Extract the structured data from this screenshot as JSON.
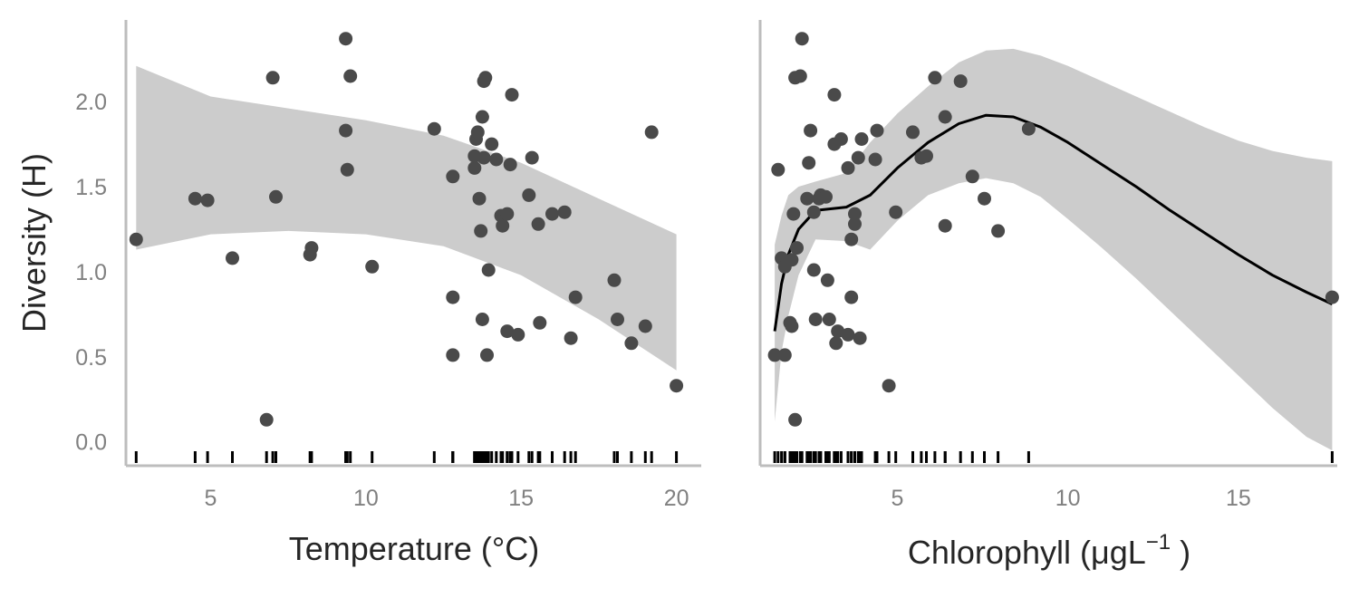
{
  "chart_data": [
    {
      "type": "scatter",
      "panel": "temperature",
      "xlabel": "Temperature (°C)",
      "ylabel": "Diversity (H)",
      "xlim": [
        2.3,
        20.8
      ],
      "ylim": [
        -0.14,
        2.48
      ],
      "x_ticks": [
        5,
        10,
        15,
        20
      ],
      "y_ticks": [
        0.0,
        0.5,
        1.0,
        1.5,
        2.0
      ],
      "y_tick_labels": [
        "0.0",
        "0.5",
        "1.0",
        "1.5",
        "2.0"
      ],
      "grid": false,
      "colors": {
        "points": "#4a4a4a",
        "band": "#cccccc",
        "rug": "#000000",
        "axis": "#bdbdbd"
      },
      "points": [
        [
          2.6,
          1.19
        ],
        [
          4.5,
          1.43
        ],
        [
          4.9,
          1.42
        ],
        [
          5.7,
          1.08
        ],
        [
          6.8,
          0.13
        ],
        [
          7.0,
          2.14
        ],
        [
          7.1,
          1.44
        ],
        [
          8.2,
          1.1
        ],
        [
          8.25,
          1.14
        ],
        [
          9.35,
          2.37
        ],
        [
          9.35,
          1.83
        ],
        [
          9.4,
          1.6
        ],
        [
          9.5,
          2.15
        ],
        [
          10.2,
          1.03
        ],
        [
          12.2,
          1.84
        ],
        [
          12.8,
          1.56
        ],
        [
          12.8,
          0.85
        ],
        [
          12.8,
          0.51
        ],
        [
          13.5,
          1.61
        ],
        [
          13.5,
          1.68
        ],
        [
          13.55,
          1.78
        ],
        [
          13.6,
          1.82
        ],
        [
          13.65,
          1.43
        ],
        [
          13.75,
          1.91
        ],
        [
          13.7,
          1.24
        ],
        [
          13.75,
          0.72
        ],
        [
          13.8,
          1.67
        ],
        [
          13.8,
          2.12
        ],
        [
          13.85,
          2.14
        ],
        [
          13.9,
          0.51
        ],
        [
          13.95,
          1.01
        ],
        [
          14.05,
          1.75
        ],
        [
          14.2,
          1.66
        ],
        [
          14.35,
          1.33
        ],
        [
          14.4,
          1.27
        ],
        [
          14.55,
          1.34
        ],
        [
          14.55,
          0.65
        ],
        [
          14.65,
          1.63
        ],
        [
          14.7,
          2.04
        ],
        [
          14.9,
          0.63
        ],
        [
          15.25,
          1.45
        ],
        [
          15.35,
          1.67
        ],
        [
          15.55,
          1.28
        ],
        [
          15.6,
          0.7
        ],
        [
          16.0,
          1.34
        ],
        [
          16.4,
          1.35
        ],
        [
          16.6,
          0.61
        ],
        [
          16.75,
          0.85
        ],
        [
          18.0,
          0.95
        ],
        [
          18.1,
          0.72
        ],
        [
          18.55,
          0.58
        ],
        [
          19.0,
          0.68
        ],
        [
          19.2,
          1.82
        ],
        [
          20.0,
          0.33
        ]
      ],
      "band": {
        "x": [
          2.6,
          5.0,
          7.5,
          10.0,
          12.5,
          15.0,
          17.5,
          20.0
        ],
        "upper": [
          2.21,
          2.03,
          1.96,
          1.89,
          1.8,
          1.64,
          1.43,
          1.22
        ],
        "lower": [
          1.13,
          1.22,
          1.24,
          1.22,
          1.15,
          0.98,
          0.72,
          0.42
        ]
      }
    },
    {
      "type": "line",
      "panel": "chlorophyll",
      "xlabel": "Chlorophyll (μgL",
      "xlabel_superscript": "−1",
      "xlabel_suffix": " )",
      "ylabel": "",
      "xlim": [
        1.0,
        17.9
      ],
      "ylim": [
        -0.14,
        2.48
      ],
      "x_ticks": [
        5,
        10,
        15
      ],
      "grid": false,
      "colors": {
        "points": "#4a4a4a",
        "band": "#cccccc",
        "line": "#000000",
        "rug": "#000000",
        "axis": "#bdbdbd"
      },
      "points": [
        [
          1.4,
          0.51
        ],
        [
          1.5,
          1.6
        ],
        [
          1.6,
          1.08
        ],
        [
          1.7,
          0.51
        ],
        [
          1.7,
          1.03
        ],
        [
          1.85,
          0.7
        ],
        [
          1.9,
          1.07
        ],
        [
          1.9,
          0.68
        ],
        [
          1.95,
          1.34
        ],
        [
          2.0,
          0.13
        ],
        [
          2.0,
          2.14
        ],
        [
          2.05,
          1.14
        ],
        [
          2.15,
          2.15
        ],
        [
          2.2,
          2.37
        ],
        [
          2.35,
          1.43
        ],
        [
          2.4,
          1.64
        ],
        [
          2.45,
          1.83
        ],
        [
          2.55,
          1.35
        ],
        [
          2.55,
          1.01
        ],
        [
          2.6,
          0.72
        ],
        [
          2.7,
          1.43
        ],
        [
          2.75,
          1.45
        ],
        [
          2.9,
          1.44
        ],
        [
          2.95,
          0.95
        ],
        [
          3.0,
          0.72
        ],
        [
          3.15,
          1.75
        ],
        [
          3.15,
          2.04
        ],
        [
          3.2,
          0.58
        ],
        [
          3.25,
          0.65
        ],
        [
          3.35,
          1.78
        ],
        [
          3.55,
          1.61
        ],
        [
          3.55,
          0.63
        ],
        [
          3.65,
          1.19
        ],
        [
          3.65,
          0.85
        ],
        [
          3.75,
          1.34
        ],
        [
          3.75,
          1.28
        ],
        [
          3.85,
          1.67
        ],
        [
          3.9,
          0.61
        ],
        [
          3.95,
          1.78
        ],
        [
          4.35,
          1.66
        ],
        [
          4.4,
          1.83
        ],
        [
          4.75,
          0.33
        ],
        [
          4.95,
          1.35
        ],
        [
          5.45,
          1.82
        ],
        [
          5.7,
          1.67
        ],
        [
          5.85,
          1.68
        ],
        [
          6.1,
          2.14
        ],
        [
          6.4,
          1.91
        ],
        [
          6.4,
          1.27
        ],
        [
          6.85,
          2.12
        ],
        [
          7.2,
          1.56
        ],
        [
          7.55,
          1.43
        ],
        [
          7.95,
          1.24
        ],
        [
          8.85,
          1.84
        ],
        [
          17.75,
          0.85
        ]
      ],
      "fit": {
        "x": [
          1.4,
          1.6,
          1.8,
          2.1,
          2.6,
          3.5,
          4.2,
          5.0,
          5.9,
          6.8,
          7.6,
          8.4,
          9.2,
          10.0,
          11.0,
          12.0,
          13.0,
          14.0,
          15.0,
          16.0,
          17.0,
          17.75
        ],
        "y": [
          0.65,
          0.93,
          1.1,
          1.25,
          1.36,
          1.38,
          1.45,
          1.61,
          1.76,
          1.87,
          1.92,
          1.91,
          1.85,
          1.76,
          1.63,
          1.5,
          1.36,
          1.23,
          1.1,
          0.98,
          0.88,
          0.81
        ]
      },
      "band": {
        "x": [
          1.4,
          1.6,
          1.8,
          2.1,
          2.6,
          3.5,
          4.2,
          5.0,
          5.9,
          6.8,
          7.6,
          8.4,
          9.2,
          10.0,
          11.0,
          12.0,
          13.0,
          14.0,
          15.0,
          16.0,
          17.0,
          17.75
        ],
        "upper": [
          1.16,
          1.33,
          1.45,
          1.5,
          1.53,
          1.58,
          1.76,
          1.93,
          2.09,
          2.23,
          2.3,
          2.31,
          2.27,
          2.21,
          2.12,
          2.03,
          1.94,
          1.85,
          1.77,
          1.71,
          1.67,
          1.65
        ],
        "lower": [
          0.12,
          0.53,
          0.74,
          0.98,
          1.19,
          1.18,
          1.13,
          1.3,
          1.45,
          1.52,
          1.55,
          1.52,
          1.44,
          1.31,
          1.14,
          0.96,
          0.77,
          0.58,
          0.39,
          0.2,
          0.03,
          -0.05
        ]
      }
    }
  ]
}
